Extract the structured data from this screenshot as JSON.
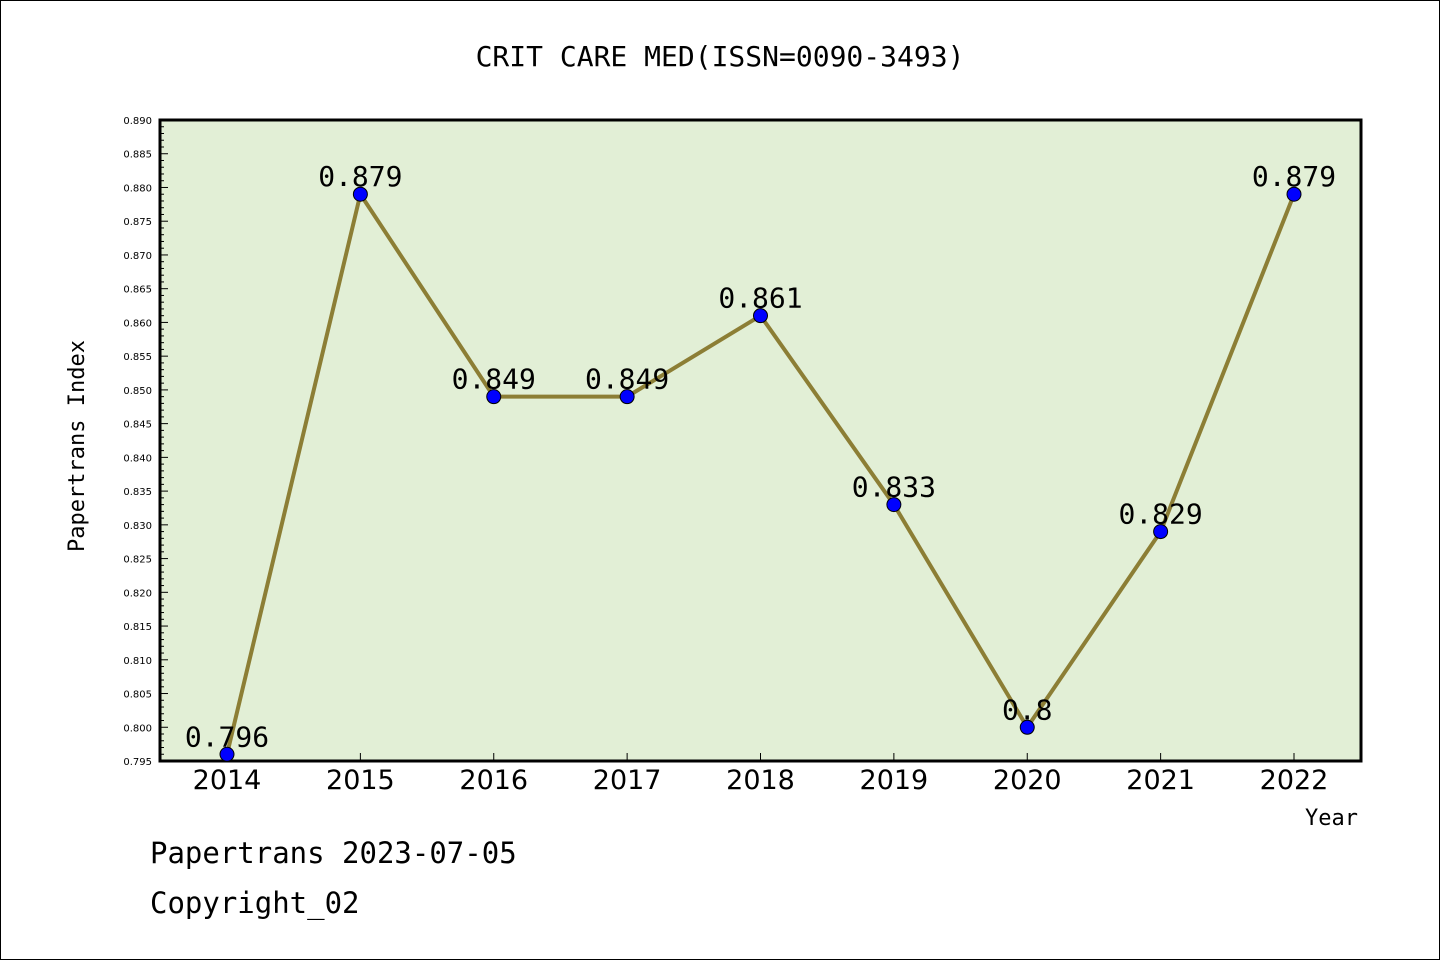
{
  "chart_data": {
    "type": "line",
    "title": "CRIT CARE MED(ISSN=0090-3493)",
    "xlabel": "Year",
    "ylabel": "Papertrans Index",
    "ylim": [
      0.795,
      0.89
    ],
    "ytick_step": 0.005,
    "grid": false,
    "categories": [
      "2014",
      "2015",
      "2016",
      "2017",
      "2018",
      "2019",
      "2020",
      "2021",
      "2022"
    ],
    "values": [
      0.796,
      0.879,
      0.849,
      0.849,
      0.861,
      0.833,
      0.8,
      0.829,
      0.879
    ],
    "data_labels": [
      "0.796",
      "0.879",
      "0.849",
      "0.849",
      "0.861",
      "0.833",
      "0.8",
      "0.829",
      "0.879"
    ],
    "colors": {
      "plot_background": "#e2efd6",
      "line": "#8c7e35",
      "marker": "#0000ff"
    }
  },
  "footer": {
    "line1": "Papertrans 2023-07-05",
    "line2": "Copyright_02"
  }
}
